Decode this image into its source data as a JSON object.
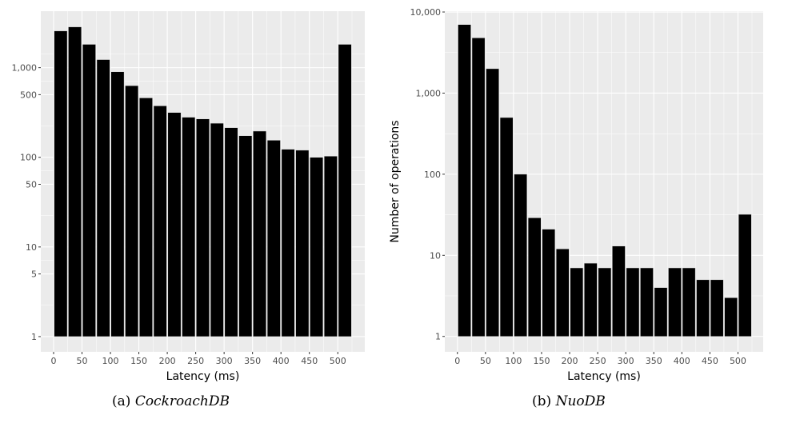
{
  "chart_data": [
    {
      "type": "bar",
      "caption_label": "(a)",
      "caption_name": "CockroachDB",
      "xlabel": "Latency (ms)",
      "ylabel": "",
      "yscale": "log10",
      "xlim": [
        -22.5,
        547.5
      ],
      "ylim_log10": [
        -0.17,
        3.63
      ],
      "grid": true,
      "x_ticks": [
        0,
        50,
        100,
        150,
        200,
        250,
        300,
        350,
        400,
        450,
        500
      ],
      "x_tick_labels": [
        "0",
        "50",
        "100",
        "150",
        "200",
        "250",
        "300",
        "350",
        "400",
        "450",
        "500"
      ],
      "y_ticks": [
        1,
        5,
        10,
        50,
        100,
        500,
        1000
      ],
      "y_tick_labels": [
        "1",
        "5",
        "10",
        "50",
        "100",
        "500",
        "1,000"
      ],
      "bin_width": 25,
      "x": [
        12.5,
        37.5,
        62.5,
        87.5,
        112.5,
        137.5,
        162.5,
        187.5,
        212.5,
        237.5,
        262.5,
        287.5,
        312.5,
        337.5,
        362.5,
        387.5,
        412.5,
        437.5,
        462.5,
        487.5,
        512.5
      ],
      "values": [
        2570,
        2850,
        1820,
        1230,
        900,
        630,
        460,
        375,
        316,
        280,
        268,
        240,
        214,
        174,
        196,
        155,
        123,
        120,
        100,
        103,
        1820
      ]
    },
    {
      "type": "bar",
      "caption_label": "(b)",
      "caption_name": "NuoDB",
      "xlabel": "Latency (ms)",
      "ylabel": "Number of operations",
      "yscale": "log10",
      "xlim": [
        -22.5,
        545
      ],
      "ylim_log10": [
        -0.19,
        4.01
      ],
      "grid": true,
      "x_ticks": [
        0,
        50,
        100,
        150,
        200,
        250,
        300,
        350,
        400,
        450,
        500
      ],
      "x_tick_labels": [
        "0",
        "50",
        "100",
        "150",
        "200",
        "250",
        "300",
        "350",
        "400",
        "450",
        "500"
      ],
      "y_ticks": [
        1,
        10,
        100,
        1000,
        10000
      ],
      "y_tick_labels": [
        "1",
        "10",
        "100",
        "1,000",
        "10,000"
      ],
      "bin_width": 25,
      "x": [
        12.5,
        37.5,
        62.5,
        87.5,
        112.5,
        137.5,
        162.5,
        187.5,
        212.5,
        237.5,
        262.5,
        287.5,
        312.5,
        337.5,
        362.5,
        387.5,
        412.5,
        437.5,
        462.5,
        487.5,
        512.5
      ],
      "values": [
        7000,
        4800,
        2000,
        500,
        100,
        29,
        21,
        12,
        7,
        8,
        7,
        13,
        7,
        7,
        4,
        7,
        7,
        5,
        5,
        3,
        32
      ]
    }
  ],
  "colors": {
    "panel": "#ebebeb",
    "grid": "#ffffff",
    "bar": "#000000"
  }
}
